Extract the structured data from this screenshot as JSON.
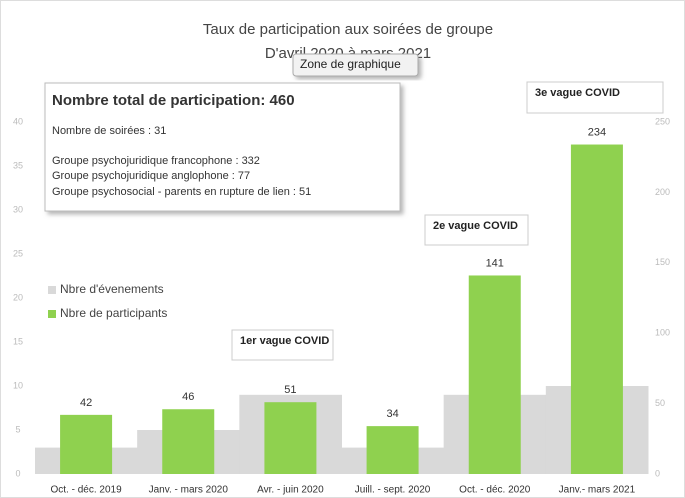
{
  "chart_data": {
    "type": "bar",
    "title": "Taux de participation aux soirées de groupe",
    "subtitle": "D'avril 2020 à mars 2021",
    "tooltip": "Zone de graphique",
    "categories": [
      "Oct. - déc. 2019",
      "Janv. - mars 2020",
      "Avr. - juin 2020",
      "Juill. - sept. 2020",
      "Oct. - déc. 2020",
      "Janv.- mars 2021"
    ],
    "series": [
      {
        "name": "Nbre d'évenements",
        "color": "#d9d9d9",
        "values": [
          3,
          5,
          9,
          3,
          9,
          10
        ]
      },
      {
        "name": "Nbre de participants",
        "color": "#8fd14f",
        "axis": "y2",
        "values": [
          42,
          46,
          51,
          34,
          141,
          234
        ]
      }
    ],
    "ylim": [
      0,
      40
    ],
    "yticks": [
      0,
      5,
      10,
      15,
      20,
      25,
      30,
      35,
      40
    ],
    "y2lim": [
      0,
      250
    ],
    "y2ticks": [
      0,
      50,
      100,
      150,
      200,
      250
    ],
    "legend": "left",
    "annotations": [
      "1er vague COVID",
      "2e vague COVID",
      "3e vague COVID"
    ],
    "info_box": {
      "title": "Nombre total de participation: 460",
      "lines": [
        "Nombre de soirées : 31",
        "Groupe psychojuridique francophone : 332",
        "Groupe psychojuridique anglophone : 77",
        "Groupe psychosocial - parents en rupture de lien : 51"
      ]
    }
  }
}
